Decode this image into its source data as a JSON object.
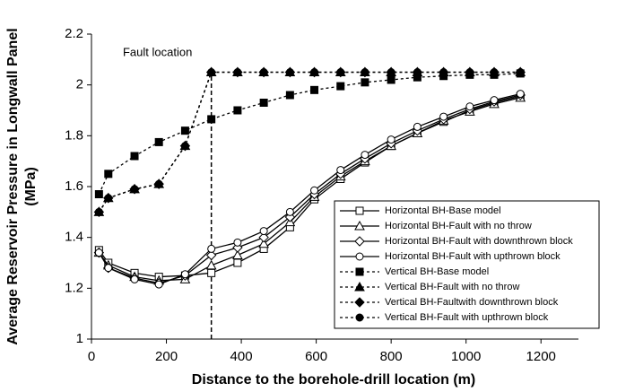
{
  "chart_data": {
    "type": "line",
    "x_label": "Distance to the borehole-drill location (m)",
    "y_label": [
      "Average Reservoir Pressure in Longwall Panel",
      "(MPa)"
    ],
    "x": [
      20,
      45,
      115,
      180,
      250,
      320,
      390,
      460,
      530,
      595,
      665,
      730,
      800,
      870,
      940,
      1010,
      1075,
      1145
    ],
    "series": [
      {
        "name": "Horizontal BH-Base model",
        "color": "#000000",
        "marker": "square",
        "filled": false,
        "dashed": false,
        "values": [
          1.35,
          1.3,
          1.26,
          1.245,
          1.25,
          1.26,
          1.3,
          1.355,
          1.44,
          1.55,
          1.63,
          1.695,
          1.76,
          1.81,
          1.855,
          1.9,
          1.93,
          1.955
        ]
      },
      {
        "name": "Horizontal BH-Fault with no throw",
        "color": "#000000",
        "marker": "triangle",
        "filled": false,
        "dashed": false,
        "values": [
          1.34,
          1.29,
          1.245,
          1.23,
          1.235,
          1.29,
          1.33,
          1.375,
          1.46,
          1.56,
          1.64,
          1.7,
          1.76,
          1.81,
          1.86,
          1.895,
          1.925,
          1.95
        ]
      },
      {
        "name": "Horizontal BH-Fault with downthrown block",
        "color": "#000000",
        "marker": "diamond",
        "filled": false,
        "dashed": false,
        "values": [
          1.34,
          1.28,
          1.24,
          1.22,
          1.25,
          1.33,
          1.36,
          1.4,
          1.48,
          1.57,
          1.65,
          1.71,
          1.77,
          1.82,
          1.865,
          1.905,
          1.935,
          1.96
        ]
      },
      {
        "name": "Horizontal BH-Fault with upthrown block",
        "color": "#000000",
        "marker": "circle",
        "filled": false,
        "dashed": false,
        "values": [
          1.34,
          1.28,
          1.235,
          1.215,
          1.255,
          1.355,
          1.38,
          1.425,
          1.5,
          1.585,
          1.665,
          1.725,
          1.785,
          1.835,
          1.875,
          1.915,
          1.94,
          1.965
        ]
      },
      {
        "name": "Vertical BH-Base model",
        "color": "#000000",
        "marker": "square",
        "filled": true,
        "dashed": true,
        "values": [
          1.57,
          1.65,
          1.72,
          1.775,
          1.82,
          1.865,
          1.9,
          1.93,
          1.96,
          1.98,
          1.995,
          2.01,
          2.02,
          2.03,
          2.035,
          2.04,
          2.04,
          2.045
        ]
      },
      {
        "name": "Vertical BH-Fault with no throw",
        "color": "#000000",
        "marker": "triangle",
        "filled": true,
        "dashed": true,
        "values": [
          1.5,
          1.555,
          1.59,
          1.61,
          1.76,
          2.05,
          2.05,
          2.05,
          2.05,
          2.05,
          2.05,
          2.05,
          2.05,
          2.05,
          2.05,
          2.05,
          2.05,
          2.05
        ]
      },
      {
        "name": "Vertical BH-Faultwith downthrown block",
        "color": "#000000",
        "marker": "diamond",
        "filled": true,
        "dashed": true,
        "values": [
          1.5,
          1.555,
          1.59,
          1.61,
          1.76,
          2.05,
          2.05,
          2.05,
          2.05,
          2.05,
          2.05,
          2.05,
          2.05,
          2.05,
          2.05,
          2.05,
          2.05,
          2.05
        ]
      },
      {
        "name": "Vertical BH-Fault with upthrown block",
        "color": "#000000",
        "marker": "circle",
        "filled": true,
        "dashed": true,
        "values": [
          1.5,
          1.555,
          1.59,
          1.61,
          1.76,
          2.05,
          2.05,
          2.05,
          2.05,
          2.05,
          2.05,
          2.05,
          2.05,
          2.05,
          2.05,
          2.05,
          2.05,
          2.05
        ]
      }
    ],
    "annotations": [
      {
        "text": "Fault location",
        "x": 320,
        "y": 2.05
      }
    ],
    "xlim": [
      0,
      1300
    ],
    "xticks": [
      0,
      200,
      400,
      600,
      800,
      1000,
      1200
    ],
    "ylim": [
      1,
      2.2
    ],
    "yticks": [
      1,
      1.2,
      1.4,
      1.6,
      1.8,
      2,
      2.2
    ],
    "grid": false,
    "legend": "lower right"
  }
}
